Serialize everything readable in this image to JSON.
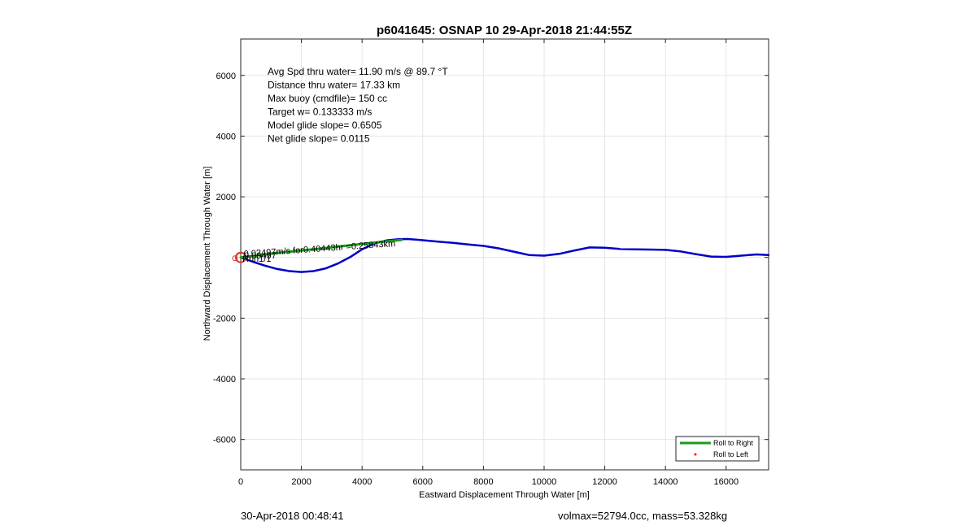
{
  "chart_data": {
    "type": "line",
    "title": "p6041645: OSNAP 10 29-Apr-2018 21:44:55Z",
    "xlabel": "Eastward Displacement Through Water [m]",
    "ylabel": "Northward Displacement Through Water [m]",
    "xlim": [
      0,
      17400
    ],
    "ylim": [
      -7000,
      7200
    ],
    "xticks": [
      0,
      2000,
      4000,
      6000,
      8000,
      10000,
      12000,
      14000,
      16000
    ],
    "yticks": [
      -6000,
      -4000,
      -2000,
      0,
      2000,
      4000,
      6000
    ],
    "xtick_labels": [
      "0",
      "2000",
      "4000",
      "6000",
      "8000",
      "10000",
      "12000",
      "14000",
      "16000"
    ],
    "ytick_labels": [
      "-6000",
      "-4000",
      "-2000",
      "",
      "2000",
      "4000",
      "6000"
    ],
    "grid": true,
    "legend_location": "bottom-right",
    "legend": [
      {
        "label": "Roll to Right",
        "color": "#1c9a1c",
        "marker": "line"
      },
      {
        "label": "Roll to Left",
        "color": "#ff0000",
        "marker": "dot"
      }
    ],
    "annotations": [
      "Avg Spd thru water= 11.90 m/s @  89.7 °T",
      "Distance thru water= 17.33 km",
      "Max buoy (cmdfile)= 150 cc",
      "Target w= 0.133333 m/s",
      "Model glide slope= 0.6505",
      "Net glide slope= 0.0115"
    ],
    "overlap_text": [
      {
        "text": "0.02497m/s for0.40443hr =0.25843km",
        "x": 0,
        "y": 0
      },
      {
        "text": "0.00497",
        "x": 0,
        "y": 0
      },
      {
        "text": "Run1/1",
        "x": 0,
        "y": 0
      }
    ],
    "series": [
      {
        "color": "#0000c8",
        "x": [
          0,
          400,
          800,
          1200,
          1600,
          2000,
          2400,
          2800,
          3200,
          3600,
          4000,
          4400,
          4800,
          5200,
          5500,
          6000,
          6500,
          7000,
          7500,
          8000,
          8500,
          9000,
          9500,
          10000,
          10500,
          11000,
          11500,
          12000,
          12500,
          13000,
          13500,
          14000,
          14500,
          15000,
          15500,
          16000,
          16500,
          17000,
          17400
        ],
        "y": [
          0,
          -140,
          -270,
          -380,
          -450,
          -480,
          -450,
          -360,
          -200,
          10,
          270,
          460,
          560,
          600,
          610,
          570,
          520,
          480,
          430,
          380,
          300,
          190,
          80,
          60,
          120,
          230,
          330,
          320,
          280,
          270,
          260,
          250,
          200,
          110,
          30,
          20,
          60,
          100,
          80
        ]
      },
      {
        "color": "#1c9a1c",
        "x": [
          0,
          1200,
          2400,
          3600,
          4500,
          5300
        ],
        "y": [
          0,
          150,
          270,
          400,
          500,
          580
        ]
      }
    ],
    "start_marker": {
      "x": 0,
      "y": 0,
      "color": "#e03030"
    }
  },
  "footer": {
    "left": "30-Apr-2018 00:48:41",
    "right": "volmax=52794.0cc, mass=53.328kg"
  }
}
